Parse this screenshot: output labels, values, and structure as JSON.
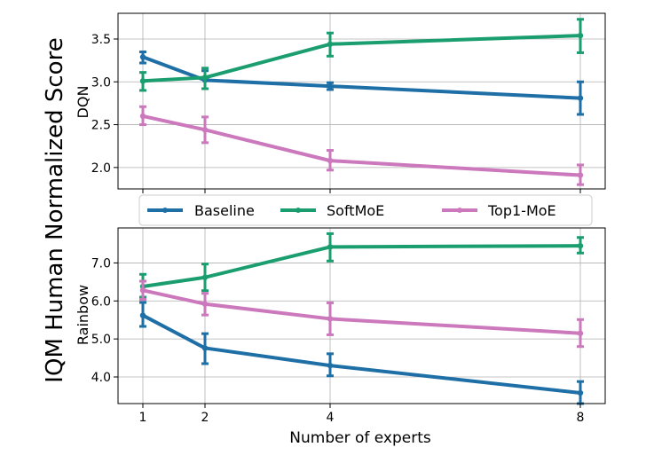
{
  "figure": {
    "ylabel": "IQM Human Normalized Score",
    "xlabel": "Number of experts"
  },
  "legend": [
    {
      "label": "Baseline",
      "color": "#1f6fa7"
    },
    {
      "label": "SoftMoE",
      "color": "#1b9e6f"
    },
    {
      "label": "Top1-MoE",
      "color": "#cc78bc"
    }
  ],
  "chart_data": [
    {
      "type": "line",
      "subplot_label": "DQN",
      "x": [
        1,
        2,
        4,
        8
      ],
      "xticks": [
        "1",
        "2",
        "4",
        "8"
      ],
      "ylim": [
        1.75,
        3.8
      ],
      "yticks": [
        2.0,
        2.5,
        3.0,
        3.5
      ],
      "ytick_labels": [
        "2.0",
        "2.5",
        "3.0",
        "3.5"
      ],
      "grid": true,
      "series": [
        {
          "name": "Baseline",
          "color": "#1f6fa7",
          "values": [
            3.29,
            3.02,
            2.95,
            2.81
          ],
          "err_low": [
            3.22,
            2.92,
            2.91,
            2.62
          ],
          "err_high": [
            3.35,
            3.13,
            2.99,
            3.0
          ]
        },
        {
          "name": "SoftMoE",
          "color": "#1b9e6f",
          "values": [
            3.01,
            3.05,
            3.44,
            3.54
          ],
          "err_low": [
            2.9,
            2.92,
            3.3,
            3.34
          ],
          "err_high": [
            3.11,
            3.16,
            3.57,
            3.73
          ]
        },
        {
          "name": "Top1-MoE",
          "color": "#cc78bc",
          "values": [
            2.6,
            2.44,
            2.08,
            1.91
          ],
          "err_low": [
            2.5,
            2.29,
            1.97,
            1.8
          ],
          "err_high": [
            2.71,
            2.59,
            2.2,
            2.03
          ]
        }
      ]
    },
    {
      "type": "line",
      "subplot_label": "Rainbow",
      "x": [
        1,
        2,
        4,
        8
      ],
      "xticks": [
        "1",
        "2",
        "4",
        "8"
      ],
      "ylim": [
        3.3,
        7.92
      ],
      "yticks": [
        4.0,
        5.0,
        6.0,
        7.0
      ],
      "ytick_labels": [
        "4.0",
        "5.0",
        "6.0",
        "7.0"
      ],
      "grid": true,
      "series": [
        {
          "name": "Baseline",
          "color": "#1f6fa7",
          "values": [
            5.62,
            4.76,
            4.3,
            3.58
          ],
          "err_low": [
            5.33,
            4.35,
            4.03,
            3.3
          ],
          "err_high": [
            5.96,
            5.14,
            4.61,
            3.88
          ]
        },
        {
          "name": "SoftMoE",
          "color": "#1b9e6f",
          "values": [
            6.38,
            6.62,
            7.42,
            7.45
          ],
          "err_low": [
            6.1,
            6.27,
            7.05,
            7.26
          ],
          "err_high": [
            6.7,
            6.97,
            7.77,
            7.67
          ]
        },
        {
          "name": "Top1-MoE",
          "color": "#cc78bc",
          "values": [
            6.28,
            5.92,
            5.53,
            5.15
          ],
          "err_low": [
            6.04,
            5.63,
            5.11,
            4.8
          ],
          "err_high": [
            6.52,
            6.2,
            5.95,
            5.51
          ]
        }
      ]
    }
  ]
}
